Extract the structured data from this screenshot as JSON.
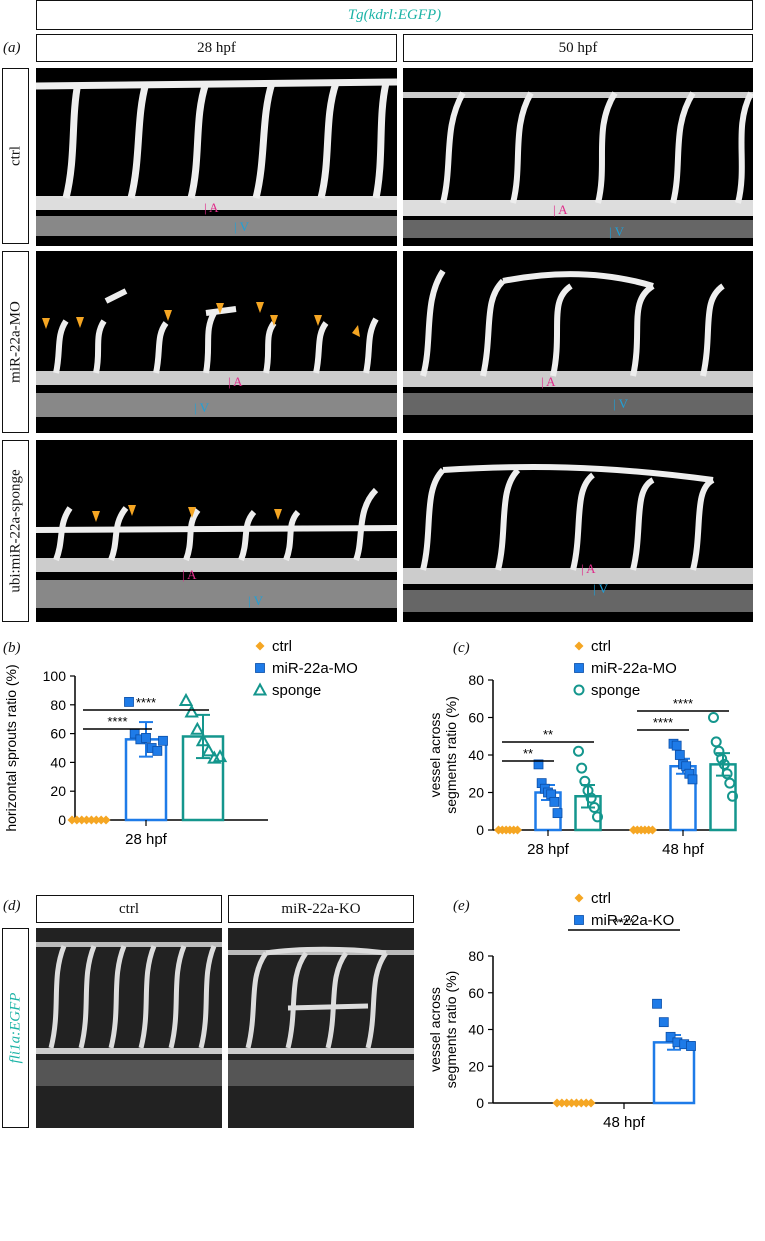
{
  "header": {
    "transgene": "Tg(kdrl:EGFP)"
  },
  "panel_a": {
    "letter": "(a)",
    "col1": "28 hpf",
    "col2": "50 hpf",
    "rows": [
      "ctrl",
      "miR-22a-MO",
      "ubi:miR-22a-sponge"
    ],
    "marker_A": "A",
    "marker_V": "V"
  },
  "panel_d": {
    "letter": "(d)",
    "col1": "ctrl",
    "col2": "miR-22a-KO",
    "row": "fli1a:EGFP"
  },
  "chart_data": [
    {
      "panel": "(b)",
      "type": "bar",
      "categories": [
        "28 hpf"
      ],
      "ylabel": "horizontal sprouts ratio (%)",
      "ylim": [
        0,
        100
      ],
      "yticks": [
        0,
        20,
        40,
        60,
        80,
        100
      ],
      "legend": [
        "ctrl",
        "miR-22a-MO",
        "sponge"
      ],
      "series": [
        {
          "name": "ctrl",
          "color": "#f5a623",
          "marker": "diamond",
          "values": [
            0
          ],
          "error": [
            0
          ],
          "points": [
            0,
            0,
            0,
            0,
            0,
            0,
            0,
            0
          ]
        },
        {
          "name": "miR-22a-MO",
          "color": "#1e7be8",
          "marker": "square",
          "values": [
            56
          ],
          "error": [
            12
          ],
          "points": [
            82,
            60,
            56,
            57,
            50,
            48,
            55
          ]
        },
        {
          "name": "sponge",
          "color": "#14968d",
          "marker": "triangle",
          "values": [
            58
          ],
          "error": [
            15
          ],
          "points": [
            83,
            75,
            63,
            55,
            48,
            43,
            44
          ]
        }
      ],
      "significance": [
        {
          "from": "ctrl",
          "to": "miR-22a-MO",
          "label": "****"
        },
        {
          "from": "ctrl",
          "to": "sponge",
          "label": "****"
        }
      ]
    },
    {
      "panel": "(c)",
      "type": "bar",
      "categories": [
        "28 hpf",
        "48 hpf"
      ],
      "ylabel": "vessel across segments ratio (%)",
      "ylim": [
        0,
        80
      ],
      "yticks": [
        0,
        20,
        40,
        60,
        80
      ],
      "legend": [
        "ctrl",
        "miR-22a-MO",
        "sponge"
      ],
      "series": [
        {
          "name": "ctrl",
          "color": "#f5a623",
          "marker": "diamond",
          "values": [
            0,
            0
          ],
          "error": [
            0,
            0
          ],
          "points": [
            [
              0,
              0,
              0,
              0,
              0,
              0
            ],
            [
              0,
              0,
              0,
              0,
              0,
              0
            ]
          ]
        },
        {
          "name": "miR-22a-MO",
          "color": "#1e7be8",
          "marker": "square",
          "values": [
            20,
            34
          ],
          "error": [
            4,
            4
          ],
          "points": [
            [
              35,
              25,
              22,
              20,
              19,
              15,
              9
            ],
            [
              46,
              45,
              40,
              35,
              34,
              30,
              27
            ]
          ]
        },
        {
          "name": "sponge",
          "color": "#14968d",
          "marker": "circle",
          "values": [
            18,
            35
          ],
          "error": [
            6,
            6
          ],
          "points": [
            [
              42,
              33,
              26,
              21,
              17,
              12,
              7
            ],
            [
              60,
              47,
              42,
              38,
              35,
              30,
              25,
              18
            ]
          ]
        }
      ],
      "significance": [
        {
          "group": 0,
          "from": "ctrl",
          "to": "miR-22a-MO",
          "label": "**"
        },
        {
          "group": 0,
          "from": "ctrl",
          "to": "sponge",
          "label": "**"
        },
        {
          "group": 1,
          "from": "ctrl",
          "to": "miR-22a-MO",
          "label": "****"
        },
        {
          "group": 1,
          "from": "ctrl",
          "to": "sponge",
          "label": "****"
        }
      ]
    },
    {
      "panel": "(e)",
      "type": "bar",
      "categories": [
        "48 hpf"
      ],
      "ylabel": "vessel across segments ratio (%)",
      "ylim": [
        0,
        80
      ],
      "yticks": [
        0,
        20,
        40,
        60,
        80
      ],
      "legend": [
        "ctrl",
        "miR-22a-KO"
      ],
      "series": [
        {
          "name": "ctrl",
          "color": "#f5a623",
          "marker": "diamond",
          "values": [
            0
          ],
          "error": [
            0
          ],
          "points": [
            0,
            0,
            0,
            0,
            0,
            0,
            0,
            0
          ]
        },
        {
          "name": "miR-22a-KO",
          "color": "#1e7be8",
          "marker": "square",
          "values": [
            33
          ],
          "error": [
            4
          ],
          "points": [
            54,
            44,
            36,
            33,
            32,
            31
          ]
        }
      ],
      "significance": [
        {
          "from": "ctrl",
          "to": "miR-22a-KO",
          "label": "****"
        }
      ]
    }
  ]
}
